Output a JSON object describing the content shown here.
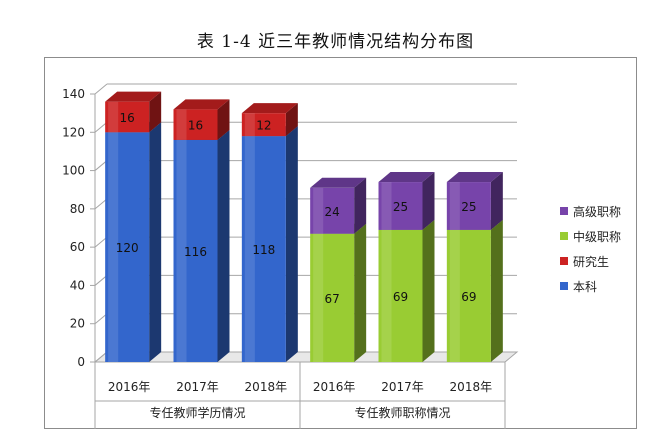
{
  "chart_data": {
    "type": "bar",
    "stacked": true,
    "style": "3d",
    "title": "表 1-4   近三年教师情况结构分布图",
    "ylim": [
      0,
      140
    ],
    "yticks": [
      0,
      20,
      40,
      60,
      80,
      100,
      120,
      140
    ],
    "grid": true,
    "legend_position": "right",
    "groups": [
      {
        "label": "专任教师学历情况",
        "categories": [
          "2016年",
          "2017年",
          "2018年"
        ]
      },
      {
        "label": "专任教师职称情况",
        "categories": [
          "2016年",
          "2017年",
          "2018年"
        ]
      }
    ],
    "categories": [
      "2016年",
      "2017年",
      "2018年",
      "2016年",
      "2017年",
      "2018年"
    ],
    "series": [
      {
        "name": "本科",
        "color": "#3366CC",
        "values": [
          120,
          116,
          118,
          null,
          null,
          null
        ]
      },
      {
        "name": "研究生",
        "color": "#CC2222",
        "values": [
          16,
          16,
          12,
          null,
          null,
          null
        ]
      },
      {
        "name": "中级职称",
        "color": "#99CC33",
        "values": [
          null,
          null,
          null,
          67,
          69,
          69
        ]
      },
      {
        "name": "高级职称",
        "color": "#7744AA",
        "values": [
          null,
          null,
          null,
          24,
          25,
          25
        ]
      }
    ],
    "legend_order": [
      "高级职称",
      "中级职称",
      "研究生",
      "本科"
    ]
  }
}
